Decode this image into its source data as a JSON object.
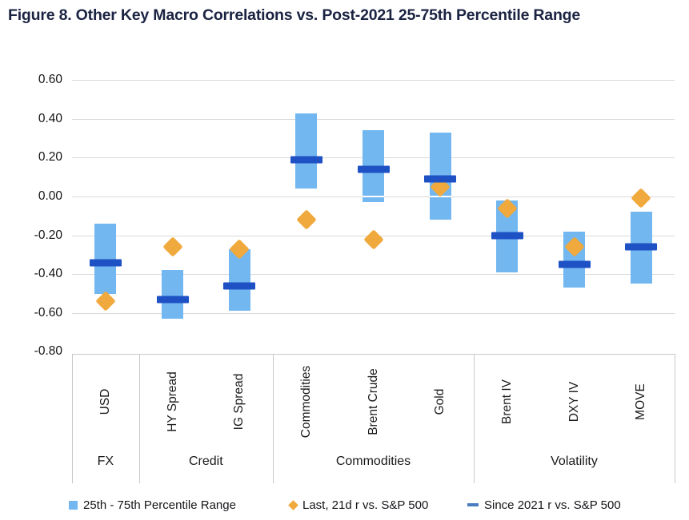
{
  "title": "Figure 8. Other Key Macro Correlations vs. Post-2021 25-75th Percentile Range",
  "colors": {
    "range_bar": "#72B7F0",
    "last_diamond": "#F0A93C",
    "since_dash": "#1E51C4",
    "legend_dash": "#4A7CC0",
    "grid": "#D9D9D9",
    "axis_box": "#C9C9C9",
    "title_text": "#1B2342"
  },
  "legend": {
    "items": [
      {
        "label": "25th - 75th Percentile Range",
        "marker": "square"
      },
      {
        "label": "Last, 21d r vs. S&P 500",
        "marker": "diamond"
      },
      {
        "label": "Since 2021 r vs. S&P 500",
        "marker": "dash"
      }
    ]
  },
  "chart_data": {
    "type": "bar",
    "subtype": "floating-range-bars-with-point-and-tick-markers",
    "title": "Figure 8. Other Key Macro Correlations vs. Post-2021 25-75th Percentile Range",
    "ylim": [
      -0.8,
      0.6
    ],
    "yticks": [
      0.6,
      0.4,
      0.2,
      0.0,
      -0.2,
      -0.4,
      -0.6,
      -0.8
    ],
    "grid": "horizontal",
    "legend_position": "bottom",
    "groups": [
      {
        "label": "FX",
        "categories": [
          "USD"
        ]
      },
      {
        "label": "Credit",
        "categories": [
          "HY Spread",
          "IG Spread"
        ]
      },
      {
        "label": "Commodities",
        "categories": [
          "Commodities",
          "Brent Crude",
          "Gold"
        ]
      },
      {
        "label": "Volatility",
        "categories": [
          "Brent IV",
          "DXY IV",
          "MOVE"
        ]
      }
    ],
    "series_names": [
      "25th - 75th Percentile Range",
      "Last, 21d r vs. S&P 500",
      "Since 2021 r vs. S&P 500"
    ],
    "points": [
      {
        "category": "USD",
        "group": "FX",
        "p25": -0.5,
        "p75": -0.14,
        "last_21d": -0.54,
        "since_2021": -0.34
      },
      {
        "category": "HY Spread",
        "group": "Credit",
        "p25": -0.63,
        "p75": -0.38,
        "last_21d": -0.26,
        "since_2021": -0.53
      },
      {
        "category": "IG Spread",
        "group": "Credit",
        "p25": -0.59,
        "p75": -0.27,
        "last_21d": -0.27,
        "since_2021": -0.46
      },
      {
        "category": "Commodities",
        "group": "Commodities",
        "p25": 0.04,
        "p75": 0.43,
        "last_21d": -0.12,
        "since_2021": 0.19
      },
      {
        "category": "Brent Crude",
        "group": "Commodities",
        "p25": -0.03,
        "p75": 0.34,
        "last_21d": -0.22,
        "since_2021": 0.14
      },
      {
        "category": "Gold",
        "group": "Commodities",
        "p25": -0.12,
        "p75": 0.33,
        "last_21d": 0.05,
        "since_2021": 0.09
      },
      {
        "category": "Brent IV",
        "group": "Volatility",
        "p25": -0.39,
        "p75": -0.02,
        "last_21d": -0.06,
        "since_2021": -0.2
      },
      {
        "category": "DXY IV",
        "group": "Volatility",
        "p25": -0.47,
        "p75": -0.18,
        "last_21d": -0.26,
        "since_2021": -0.35
      },
      {
        "category": "MOVE",
        "group": "Volatility",
        "p25": -0.45,
        "p75": -0.08,
        "last_21d": -0.01,
        "since_2021": -0.26
      }
    ]
  }
}
